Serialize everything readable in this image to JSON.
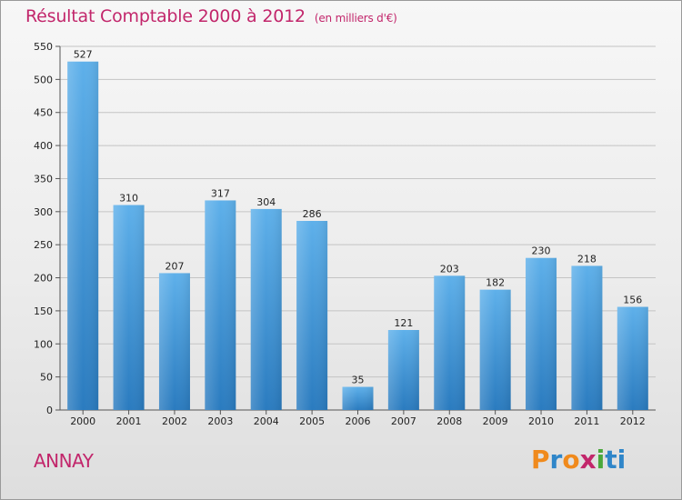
{
  "header": {
    "title": "Résultat Comptable 2000 à 2012",
    "subtitle": "(en milliers d'€)"
  },
  "footer": {
    "town": "ANNAY",
    "brand": "Proxiti"
  },
  "colors": {
    "title": "#c2266b",
    "bar_light": "#5eb0ea",
    "bar_dark": "#2a7bbf",
    "brand_letters": [
      "#f08a1c",
      "#2f86c9",
      "#f08a1c",
      "#c2266b",
      "#4aa83b",
      "#2f86c9",
      "#2f86c9"
    ]
  },
  "chart_data": {
    "type": "bar",
    "title": "Résultat Comptable 2000 à 2012",
    "subtitle": "(en milliers d'€)",
    "categories": [
      "2000",
      "2001",
      "2002",
      "2003",
      "2004",
      "2005",
      "2006",
      "2007",
      "2008",
      "2009",
      "2010",
      "2011",
      "2012"
    ],
    "values": [
      527,
      310,
      207,
      317,
      304,
      286,
      35,
      121,
      203,
      182,
      230,
      218,
      156
    ],
    "ylim": [
      0,
      550
    ],
    "yticks": [
      0,
      50,
      100,
      150,
      200,
      250,
      300,
      350,
      400,
      450,
      500,
      550
    ],
    "xlabel": "",
    "ylabel": "",
    "grid": true
  }
}
